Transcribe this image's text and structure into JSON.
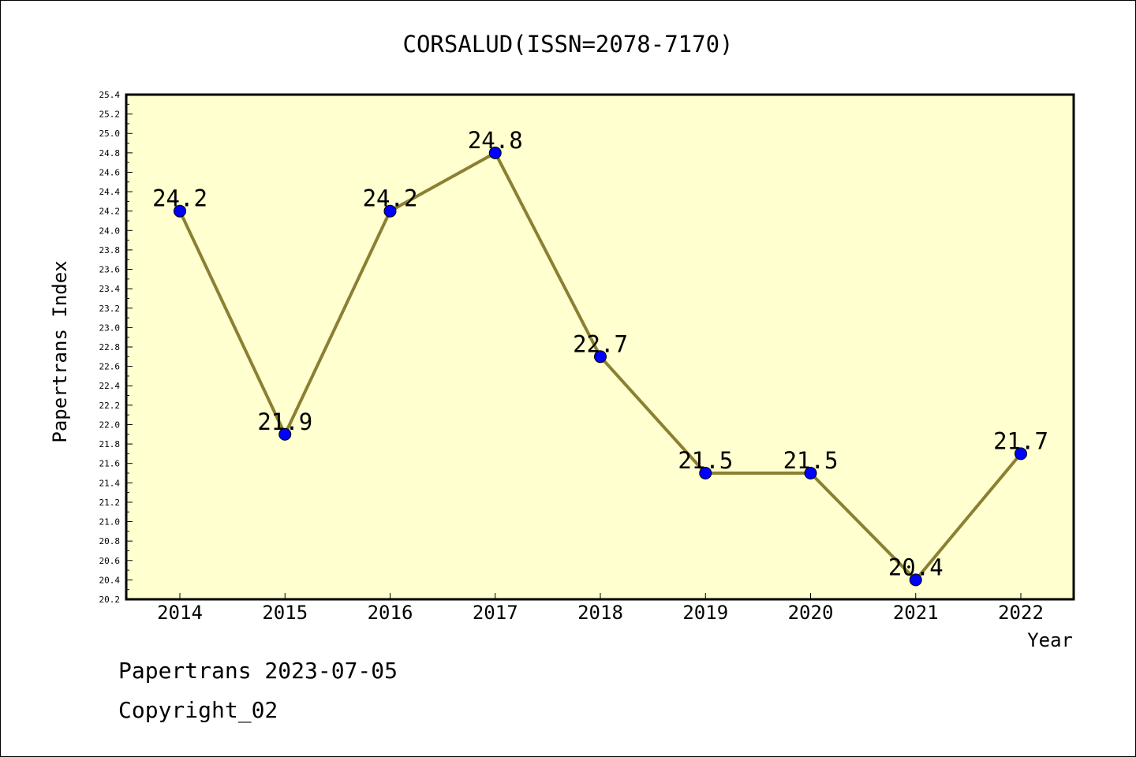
{
  "chart_data": {
    "type": "line",
    "title": "CORSALUD(ISSN=2078-7170)",
    "xlabel": "Year",
    "ylabel": "Papertrans Index",
    "categories": [
      "2014",
      "2015",
      "2016",
      "2017",
      "2018",
      "2019",
      "2020",
      "2021",
      "2022"
    ],
    "series": [
      {
        "values": [
          24.2,
          21.9,
          24.2,
          24.8,
          22.7,
          21.5,
          21.5,
          20.4,
          21.7
        ],
        "data_labels": [
          "24.2",
          "21.9",
          "24.2",
          "24.8",
          "22.7",
          "21.5",
          "21.5",
          "20.4",
          "21.7"
        ]
      }
    ],
    "ylim": [
      20.2,
      25.4
    ],
    "yticks": [
      "20.2",
      "20.4",
      "20.6",
      "20.8",
      "21.0",
      "21.2",
      "21.4",
      "21.6",
      "21.8",
      "22.0",
      "22.2",
      "22.4",
      "22.6",
      "22.8",
      "23.0",
      "23.2",
      "23.4",
      "23.6",
      "23.8",
      "24.0",
      "24.2",
      "24.4",
      "24.6",
      "24.8",
      "25.0",
      "25.2",
      "25.4"
    ],
    "grid": false,
    "legend": "none",
    "colors": {
      "plot_background": "#ffffd0",
      "line": "#8b8032",
      "marker": "#0000ff"
    }
  },
  "footer": {
    "line1": "Papertrans 2023-07-05",
    "line2": "Copyright_02"
  }
}
